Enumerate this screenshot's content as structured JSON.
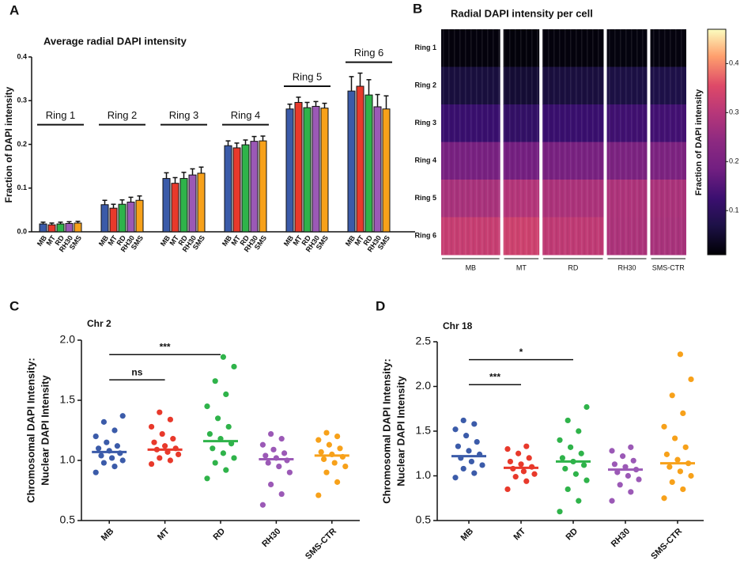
{
  "chart_data": [
    {
      "type": "grouped_bar",
      "panel": "A",
      "title": "Average radial DAPI intensity",
      "ylabel": "Fraction of DAPI intensity",
      "categories": [
        "Ring 1",
        "Ring 2",
        "Ring 3",
        "Ring 4",
        "Ring 5",
        "Ring 6"
      ],
      "series": [
        {
          "name": "MB",
          "color": "#3b5ba9",
          "values": [
            0.018,
            0.062,
            0.122,
            0.197,
            0.281,
            0.322
          ],
          "errors": [
            0.004,
            0.01,
            0.013,
            0.011,
            0.011,
            0.033
          ]
        },
        {
          "name": "MT",
          "color": "#e8392b",
          "values": [
            0.016,
            0.054,
            0.111,
            0.192,
            0.296,
            0.333
          ],
          "errors": [
            0.004,
            0.009,
            0.013,
            0.011,
            0.012,
            0.03
          ]
        },
        {
          "name": "RD",
          "color": "#2fb34a",
          "values": [
            0.018,
            0.063,
            0.122,
            0.199,
            0.284,
            0.313
          ],
          "errors": [
            0.004,
            0.01,
            0.014,
            0.011,
            0.012,
            0.035
          ]
        },
        {
          "name": "RH30",
          "color": "#9b59b6",
          "values": [
            0.019,
            0.068,
            0.13,
            0.207,
            0.287,
            0.286
          ],
          "errors": [
            0.004,
            0.011,
            0.014,
            0.011,
            0.011,
            0.028
          ]
        },
        {
          "name": "SMS",
          "color": "#f7a11a",
          "values": [
            0.02,
            0.072,
            0.134,
            0.208,
            0.283,
            0.281
          ],
          "errors": [
            0.004,
            0.01,
            0.014,
            0.011,
            0.011,
            0.03
          ]
        }
      ],
      "ylim": [
        0,
        0.4
      ],
      "yticks": [
        {
          "value": 0,
          "label": "0.0"
        },
        0.1,
        0.2,
        0.3,
        0.4
      ]
    },
    {
      "type": "heatmap",
      "panel": "B",
      "title": "Radial DAPI intensity per cell",
      "rows": [
        "Ring 1",
        "Ring 2",
        "Ring 3",
        "Ring 4",
        "Ring 5",
        "Ring 6"
      ],
      "columns": [
        "MB",
        "MT",
        "RD",
        "RH30",
        "SMS-CTR"
      ],
      "values": [
        [
          0.018,
          0.016,
          0.018,
          0.019,
          0.02
        ],
        [
          0.062,
          0.054,
          0.063,
          0.068,
          0.072
        ],
        [
          0.122,
          0.111,
          0.122,
          0.13,
          0.134
        ],
        [
          0.197,
          0.192,
          0.199,
          0.207,
          0.208
        ],
        [
          0.281,
          0.296,
          0.284,
          0.287,
          0.283
        ],
        [
          0.322,
          0.333,
          0.313,
          0.286,
          0.281
        ]
      ],
      "colormap": "magma",
      "clim": [
        0.01,
        0.47
      ],
      "cticks": [
        0.1,
        0.2,
        0.3,
        0.4
      ],
      "colorbar_label": "Fraction of DAPI intensity"
    },
    {
      "type": "strip",
      "panel": "C",
      "title": "Chr 2",
      "ylabel": [
        "Chromosomal DAPI Intensity:",
        "Nuclear DAPI Intensity"
      ],
      "categories": [
        "MB",
        "MT",
        "RD",
        "RH30",
        "SMS-CTR"
      ],
      "colors": [
        "#3b5ba9",
        "#e8392b",
        "#2fb34a",
        "#9b59b6",
        "#f7a11a"
      ],
      "points": [
        [
          0.9,
          0.95,
          0.98,
          1.0,
          1.02,
          1.04,
          1.06,
          1.08,
          1.1,
          1.12,
          1.15,
          1.2,
          1.25,
          1.32,
          1.37
        ],
        [
          0.97,
          1.0,
          1.02,
          1.05,
          1.07,
          1.09,
          1.1,
          1.12,
          1.15,
          1.18,
          1.22,
          1.28,
          1.34,
          1.4
        ],
        [
          0.85,
          0.92,
          0.98,
          1.02,
          1.06,
          1.1,
          1.14,
          1.18,
          1.22,
          1.28,
          1.35,
          1.45,
          1.55,
          1.66,
          1.78,
          1.86
        ],
        [
          0.63,
          0.72,
          0.8,
          0.9,
          0.95,
          0.98,
          1.0,
          1.02,
          1.04,
          1.06,
          1.09,
          1.13,
          1.18,
          1.22
        ],
        [
          0.71,
          0.82,
          0.9,
          0.95,
          0.98,
          1.01,
          1.03,
          1.05,
          1.07,
          1.1,
          1.13,
          1.17,
          1.2,
          1.23
        ]
      ],
      "means": [
        1.07,
        1.09,
        1.16,
        1.01,
        1.04
      ],
      "annotations": [
        {
          "text": "ns",
          "from": "MB",
          "to": "MT",
          "y": 1.67
        },
        {
          "text": "***",
          "from": "MB",
          "to": "RD",
          "y": 1.88
        }
      ],
      "ylim": [
        0.5,
        2.0
      ],
      "yticks": [
        0.5,
        {
          "value": 1,
          "label": "1.0"
        },
        1.5,
        {
          "value": 2,
          "label": "2.0"
        }
      ]
    },
    {
      "type": "strip",
      "panel": "D",
      "title": "Chr 18",
      "ylabel": [
        "Chromosomal DAPI Intensity:",
        "Nuclear DAPI Intensity"
      ],
      "categories": [
        "MB",
        "MT",
        "RD",
        "RH30",
        "SMS-CTR"
      ],
      "colors": [
        "#3b5ba9",
        "#e8392b",
        "#2fb34a",
        "#9b59b6",
        "#f7a11a"
      ],
      "points": [
        [
          0.98,
          1.03,
          1.08,
          1.12,
          1.16,
          1.2,
          1.24,
          1.28,
          1.33,
          1.38,
          1.45,
          1.52,
          1.58,
          1.62
        ],
        [
          0.85,
          0.94,
          0.99,
          1.02,
          1.05,
          1.08,
          1.1,
          1.13,
          1.16,
          1.2,
          1.25,
          1.3,
          1.33
        ],
        [
          0.6,
          0.72,
          0.85,
          0.95,
          1.02,
          1.08,
          1.12,
          1.16,
          1.2,
          1.25,
          1.32,
          1.4,
          1.5,
          1.62,
          1.77
        ],
        [
          0.72,
          0.82,
          0.9,
          0.96,
          1.0,
          1.04,
          1.07,
          1.1,
          1.13,
          1.17,
          1.22,
          1.28,
          1.32
        ],
        [
          0.75,
          0.85,
          0.93,
          1.0,
          1.05,
          1.1,
          1.14,
          1.18,
          1.24,
          1.32,
          1.42,
          1.55,
          1.7,
          1.9,
          2.08,
          2.36
        ]
      ],
      "means": [
        1.22,
        1.09,
        1.16,
        1.07,
        1.14
      ],
      "annotations": [
        {
          "text": "***",
          "from": "MB",
          "to": "MT",
          "y": 2.02
        },
        {
          "text": "*",
          "from": "MB",
          "to": "RD",
          "y": 2.3
        }
      ],
      "ylim": [
        0.5,
        2.5
      ],
      "yticks": [
        0.5,
        {
          "value": 1,
          "label": "1.0"
        },
        1.5,
        {
          "value": 2,
          "label": "2.0"
        },
        2.5
      ]
    }
  ]
}
